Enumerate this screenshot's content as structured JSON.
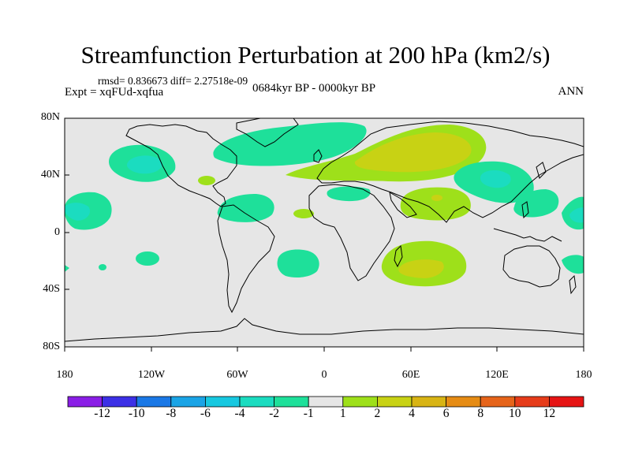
{
  "title": "Streamfunction Perturbation at 200 hPa (km2/s)",
  "stats_text": "rmsd= 0.836673 diff= 2.27518e-09",
  "experiment_text": "Expt = xqFUd-xqfua",
  "period_text": "0684kyr BP - 0000kyr BP",
  "season_text": "ANN",
  "map": {
    "lat_ticks": [
      "80N",
      "40N",
      "0",
      "40S",
      "80S"
    ],
    "lon_ticks": [
      "180",
      "120W",
      "60W",
      "0",
      "60E",
      "120E",
      "180"
    ],
    "background_color": "#e6e6e6"
  },
  "colorbar": {
    "labels": [
      "-12",
      "-10",
      "-8",
      "-6",
      "-4",
      "-2",
      "-1",
      "1",
      "2",
      "4",
      "6",
      "8",
      "10",
      "12"
    ],
    "colors": [
      "#8a1ee6",
      "#3c30e6",
      "#1a78e6",
      "#1aa4e6",
      "#17c8e0",
      "#1bdcc0",
      "#1ee09a",
      "#e6e6e6",
      "#9ee01a",
      "#c8d214",
      "#d8b414",
      "#e68c14",
      "#e6641a",
      "#e63c1a",
      "#e61414"
    ]
  }
}
